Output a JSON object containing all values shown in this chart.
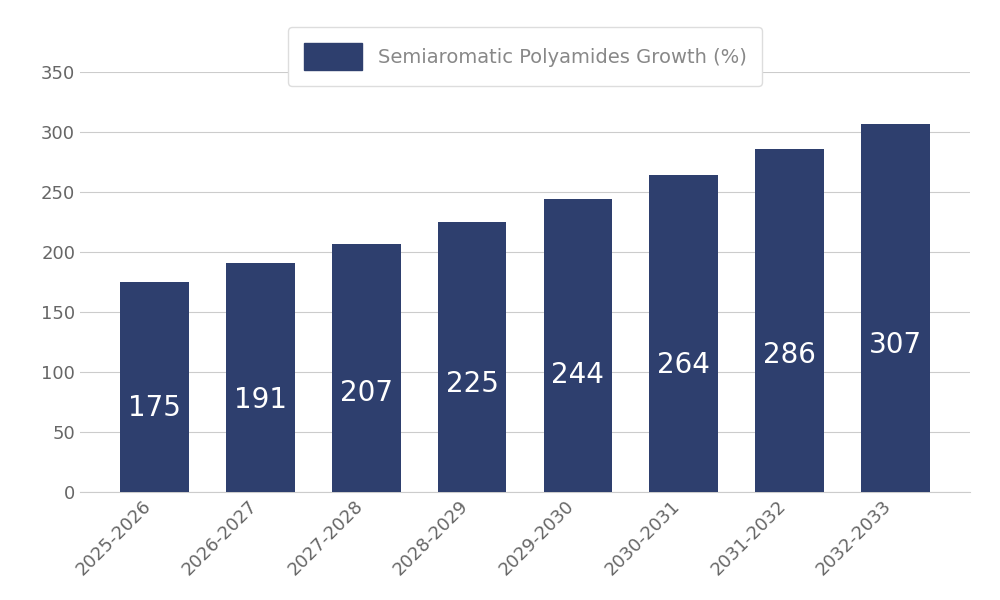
{
  "categories": [
    "2025-2026",
    "2026-2027",
    "2027-2028",
    "2028-2029",
    "2029-2030",
    "2030-2031",
    "2031-2032",
    "2032-2033"
  ],
  "values": [
    175,
    191,
    207,
    225,
    244,
    264,
    286,
    307
  ],
  "bar_color": "#2e3f6e",
  "label_color": "#ffffff",
  "background_color": "#ffffff",
  "grid_color": "#cccccc",
  "legend_label": "Semiaromatic Polyamides Growth (%)",
  "ylim": [
    0,
    350
  ],
  "yticks": [
    0,
    50,
    100,
    150,
    200,
    250,
    300,
    350
  ],
  "tick_fontsize": 13,
  "legend_fontsize": 14,
  "bar_label_fontsize": 20,
  "legend_text_color": "#888888"
}
